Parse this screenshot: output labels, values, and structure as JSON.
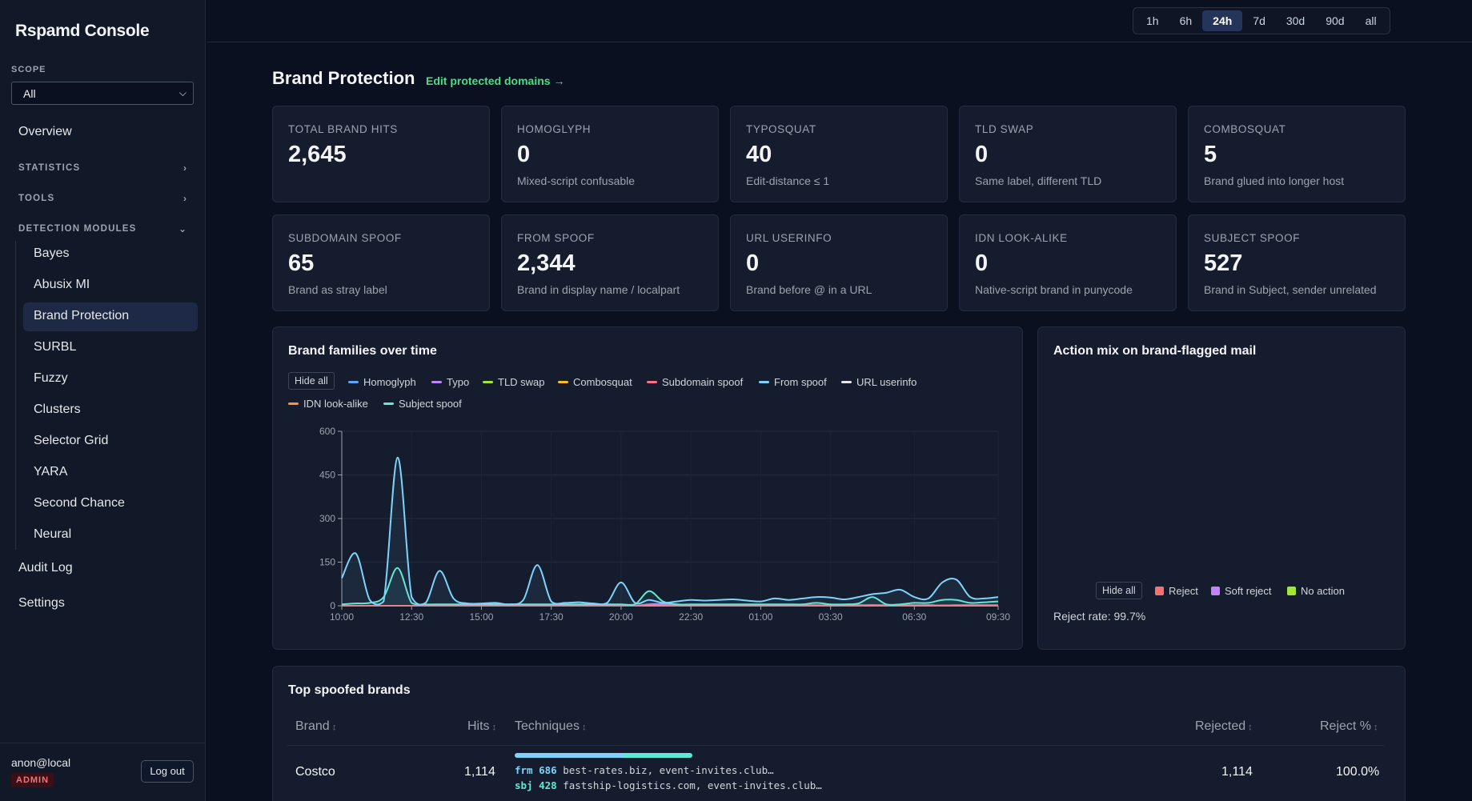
{
  "app": {
    "title": "Rspamd Console"
  },
  "scope": {
    "label": "SCOPE",
    "value": "All"
  },
  "nav": {
    "overview": "Overview",
    "statistics": "STATISTICS",
    "tools": "TOOLS",
    "detection": "DETECTION MODULES",
    "modules": [
      "Bayes",
      "Abusix MI",
      "Brand Protection",
      "SURBL",
      "Fuzzy",
      "Clusters",
      "Selector Grid",
      "YARA",
      "Second Chance",
      "Neural"
    ],
    "audit": "Audit Log",
    "settings": "Settings"
  },
  "user": {
    "name": "anon@local",
    "role": "ADMIN",
    "logout": "Log out"
  },
  "ranges": [
    "1h",
    "6h",
    "24h",
    "7d",
    "30d",
    "90d",
    "all"
  ],
  "active_range": "24h",
  "header": {
    "title": "Brand Protection",
    "edit_link": "Edit protected domains →"
  },
  "cards": [
    {
      "label": "TOTAL BRAND HITS",
      "value": "2,645",
      "sub": ""
    },
    {
      "label": "HOMOGLYPH",
      "value": "0",
      "sub": "Mixed-script confusable"
    },
    {
      "label": "TYPOSQUAT",
      "value": "40",
      "sub": "Edit-distance ≤ 1"
    },
    {
      "label": "TLD SWAP",
      "value": "0",
      "sub": "Same label, different TLD"
    },
    {
      "label": "COMBOSQUAT",
      "value": "5",
      "sub": "Brand glued into longer host"
    },
    {
      "label": "SUBDOMAIN SPOOF",
      "value": "65",
      "sub": "Brand as stray label"
    },
    {
      "label": "FROM SPOOF",
      "value": "2,344",
      "sub": "Brand in display name / localpart"
    },
    {
      "label": "URL USERINFO",
      "value": "0",
      "sub": "Brand before @ in a URL"
    },
    {
      "label": "IDN LOOK-ALIKE",
      "value": "0",
      "sub": "Native-script brand in punycode"
    },
    {
      "label": "SUBJECT SPOOF",
      "value": "527",
      "sub": "Brand in Subject, sender unrelated"
    }
  ],
  "families_panel": {
    "title": "Brand families over time",
    "hide_all": "Hide all"
  },
  "action_panel": {
    "title": "Action mix on brand-flagged mail",
    "hide_all": "Hide all",
    "legend": [
      {
        "name": "Reject",
        "color": "#f87171"
      },
      {
        "name": "Soft reject",
        "color": "#c084fc"
      },
      {
        "name": "No action",
        "color": "#a3e635"
      }
    ],
    "reject_rate": "Reject rate: 99.7%"
  },
  "chart_data": {
    "type": "area",
    "title": "Brand families over time",
    "x": [
      "10:00",
      "10:30",
      "11:00",
      "11:30",
      "12:00",
      "12:30",
      "13:00",
      "13:30",
      "14:00",
      "14:30",
      "15:00",
      "15:30",
      "16:00",
      "16:30",
      "17:00",
      "17:30",
      "18:00",
      "18:30",
      "19:00",
      "19:30",
      "20:00",
      "20:30",
      "21:00",
      "21:30",
      "22:00",
      "22:30",
      "23:00",
      "23:30",
      "00:00",
      "00:30",
      "01:00",
      "01:30",
      "02:00",
      "02:30",
      "03:00",
      "03:30",
      "04:00",
      "04:30",
      "05:00",
      "05:30",
      "06:00",
      "06:30",
      "07:00",
      "07:30",
      "08:00",
      "08:30",
      "09:00",
      "09:30"
    ],
    "xticks": [
      "10:00",
      "12:30",
      "15:00",
      "17:30",
      "20:00",
      "22:30",
      "01:00",
      "03:30",
      "06:30",
      "09:30"
    ],
    "ylim": [
      0,
      600
    ],
    "yticks": [
      0,
      150,
      300,
      450,
      600
    ],
    "series": [
      {
        "name": "Homoglyph",
        "color": "#60a5fa",
        "values": [
          0,
          0,
          0,
          0,
          0,
          0,
          0,
          0,
          0,
          0,
          0,
          0,
          0,
          0,
          0,
          0,
          0,
          0,
          0,
          0,
          0,
          0,
          0,
          0,
          0,
          0,
          0,
          0,
          0,
          0,
          0,
          0,
          0,
          0,
          0,
          0,
          0,
          0,
          0,
          0,
          0,
          0,
          0,
          0,
          0,
          0,
          0,
          0
        ]
      },
      {
        "name": "Typo",
        "color": "#c084fc",
        "values": [
          0,
          0,
          0,
          0,
          0,
          0,
          0,
          0,
          0,
          0,
          0,
          0,
          0,
          0,
          0,
          0,
          0,
          0,
          0,
          0,
          0,
          0,
          5,
          6,
          4,
          2,
          2,
          2,
          1,
          1,
          1,
          0,
          1,
          2,
          1,
          1,
          1,
          1,
          2,
          1,
          1,
          1,
          2,
          1,
          1,
          1,
          1,
          1
        ]
      },
      {
        "name": "TLD swap",
        "color": "#a3e635",
        "values": [
          0,
          0,
          0,
          0,
          0,
          0,
          0,
          0,
          0,
          0,
          0,
          0,
          0,
          0,
          0,
          0,
          0,
          0,
          0,
          0,
          0,
          0,
          0,
          0,
          0,
          0,
          0,
          0,
          0,
          0,
          0,
          0,
          0,
          0,
          0,
          0,
          0,
          0,
          0,
          0,
          0,
          0,
          0,
          0,
          0,
          0,
          0,
          0
        ]
      },
      {
        "name": "Combosquat",
        "color": "#fbbf24",
        "values": [
          0,
          0,
          0,
          0,
          0,
          0,
          0,
          0,
          0,
          0,
          0,
          0,
          0,
          0,
          0,
          0,
          0,
          0,
          0,
          0,
          0,
          0,
          0,
          0,
          0,
          0,
          0,
          0,
          0,
          0,
          1,
          0,
          0,
          0,
          0,
          0,
          0,
          0,
          0,
          0,
          0,
          0,
          0,
          0,
          0,
          0,
          0,
          0
        ]
      },
      {
        "name": "Subdomain spoof",
        "color": "#fb7185",
        "values": [
          0,
          0,
          0,
          0,
          0,
          0,
          0,
          0,
          0,
          0,
          0,
          0,
          0,
          0,
          0,
          0,
          0,
          0,
          0,
          0,
          0,
          0,
          3,
          2,
          1,
          1,
          1,
          1,
          1,
          2,
          1,
          2,
          1,
          2,
          2,
          1,
          1,
          2,
          2,
          2,
          2,
          2,
          2,
          1,
          2,
          2,
          2,
          2
        ]
      },
      {
        "name": "From spoof",
        "color": "#7dd3fc",
        "values": [
          95,
          180,
          20,
          15,
          510,
          30,
          10,
          120,
          25,
          8,
          8,
          10,
          5,
          20,
          140,
          15,
          10,
          12,
          8,
          10,
          80,
          10,
          20,
          10,
          15,
          20,
          18,
          20,
          22,
          18,
          15,
          25,
          20,
          25,
          30,
          28,
          22,
          30,
          40,
          45,
          55,
          30,
          25,
          80,
          90,
          30,
          25,
          30
        ]
      },
      {
        "name": "URL userinfo",
        "color": "#e5e7eb",
        "values": [
          0,
          0,
          0,
          0,
          0,
          0,
          0,
          0,
          0,
          0,
          0,
          0,
          0,
          0,
          0,
          0,
          0,
          0,
          0,
          0,
          0,
          0,
          0,
          0,
          0,
          0,
          0,
          0,
          0,
          0,
          0,
          0,
          0,
          0,
          0,
          0,
          0,
          0,
          0,
          0,
          0,
          0,
          0,
          0,
          0,
          0,
          0,
          0
        ]
      },
      {
        "name": "IDN look-alike",
        "color": "#fb923c",
        "values": [
          0,
          0,
          0,
          0,
          0,
          0,
          0,
          0,
          0,
          0,
          0,
          0,
          0,
          0,
          0,
          0,
          0,
          0,
          0,
          0,
          0,
          0,
          0,
          0,
          0,
          0,
          0,
          0,
          0,
          0,
          0,
          0,
          0,
          0,
          0,
          0,
          0,
          0,
          0,
          0,
          0,
          0,
          0,
          0,
          0,
          0,
          0,
          0
        ]
      },
      {
        "name": "Subject spoof",
        "color": "#5eead4",
        "values": [
          5,
          8,
          10,
          30,
          130,
          10,
          5,
          5,
          5,
          5,
          5,
          5,
          5,
          5,
          5,
          5,
          5,
          5,
          5,
          5,
          5,
          5,
          50,
          15,
          5,
          5,
          5,
          5,
          5,
          5,
          5,
          5,
          5,
          5,
          10,
          5,
          5,
          8,
          30,
          5,
          5,
          10,
          10,
          20,
          20,
          10,
          12,
          15
        ]
      }
    ]
  },
  "table": {
    "title": "Top spoofed brands",
    "columns": [
      "Brand",
      "Hits",
      "Techniques",
      "Rejected",
      "Reject %"
    ],
    "rows": [
      {
        "brand": "Costco",
        "hits": "1,114",
        "technique_mix": [
          {
            "color": "#7dd3fc",
            "fraction": 0.616
          },
          {
            "color": "#5eead4",
            "fraction": 0.384
          }
        ],
        "techniques": [
          {
            "code": "frm 686",
            "color": "#7dd3fc",
            "hosts": "best-rates.biz, event-invites.club…"
          },
          {
            "code": "sbj 428",
            "color": "#5eead4",
            "hosts": "fastship-logistics.com, event-invites.club…"
          }
        ],
        "rejected": "1,114",
        "reject_pct": "100.0%"
      }
    ]
  }
}
